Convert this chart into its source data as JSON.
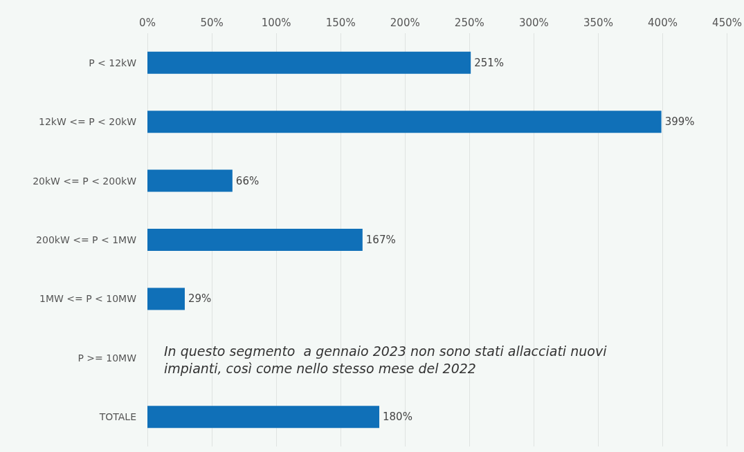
{
  "chart_data": {
    "type": "bar",
    "orientation": "horizontal",
    "categories": [
      "P < 12kW",
      "12kW <= P < 20kW",
      "20kW <= P < 200kW",
      "200kW <= P < 1MW",
      "1MW <= P < 10MW",
      "P >= 10MW",
      "TOTALE"
    ],
    "values": [
      251,
      399,
      66,
      167,
      29,
      null,
      180
    ],
    "value_labels": [
      "251%",
      "399%",
      "66%",
      "167%",
      "29%",
      null,
      "180%"
    ],
    "color": "#1070b8",
    "xlim": [
      0,
      450
    ],
    "xticks": [
      {
        "value": 0,
        "label": "0%"
      },
      {
        "value": 50,
        "label": "50%"
      },
      {
        "value": 100,
        "label": "100%"
      },
      {
        "value": 150,
        "label": "150%"
      },
      {
        "value": 200,
        "label": "200%"
      },
      {
        "value": 250,
        "label": "250%"
      },
      {
        "value": 300,
        "label": "300%"
      },
      {
        "value": 350,
        "label": "350%"
      },
      {
        "value": 400,
        "label": "400%"
      },
      {
        "value": 450,
        "label": "450%"
      }
    ],
    "grid": "x",
    "annotations": [
      "In questo segmento  a gennaio 2023 non sono stati allacciati nuovi impianti, così come nello stesso mese del 2022"
    ]
  }
}
